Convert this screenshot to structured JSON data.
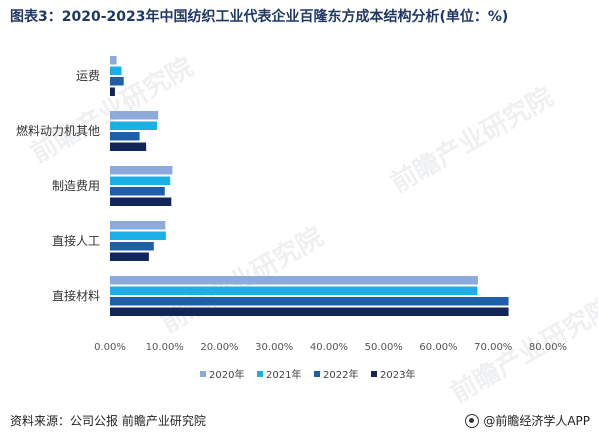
{
  "page": {
    "title": "图表3：2020-2023年中国纺织工业代表企业百隆东方成本结构分析(单位：%)",
    "source": "资料来源：公司公报  前瞻产业研究院",
    "brand": "@前瞻经济学人APP",
    "watermark": "前瞻产业研究院"
  },
  "colors": {
    "2020": "#8eaadb",
    "2021": "#1ab0e6",
    "2022": "#1f5fa8",
    "2023": "#13265c"
  },
  "chart_data": {
    "type": "bar",
    "orientation": "horizontal",
    "categories": [
      "运费",
      "燃料动力机其他",
      "制造费用",
      "直接人工",
      "直接材料"
    ],
    "series": [
      {
        "name": "2020年",
        "key": "2020",
        "values": [
          1.2,
          8.8,
          11.4,
          10.1,
          67.2
        ]
      },
      {
        "name": "2021年",
        "key": "2021",
        "values": [
          2.1,
          8.6,
          11.0,
          10.2,
          67.1
        ]
      },
      {
        "name": "2022年",
        "key": "2022",
        "values": [
          2.5,
          5.4,
          10.0,
          8.0,
          72.8
        ]
      },
      {
        "name": "2023年",
        "key": "2023",
        "values": [
          0.9,
          6.6,
          11.2,
          7.1,
          72.8
        ]
      }
    ],
    "xlim": [
      0,
      80
    ],
    "xticks": [
      "0.00%",
      "10.00%",
      "20.00%",
      "30.00%",
      "40.00%",
      "50.00%",
      "60.00%",
      "70.00%",
      "80.00%"
    ],
    "xlabel": "",
    "ylabel": "",
    "grid": false,
    "legend": "bottom"
  }
}
